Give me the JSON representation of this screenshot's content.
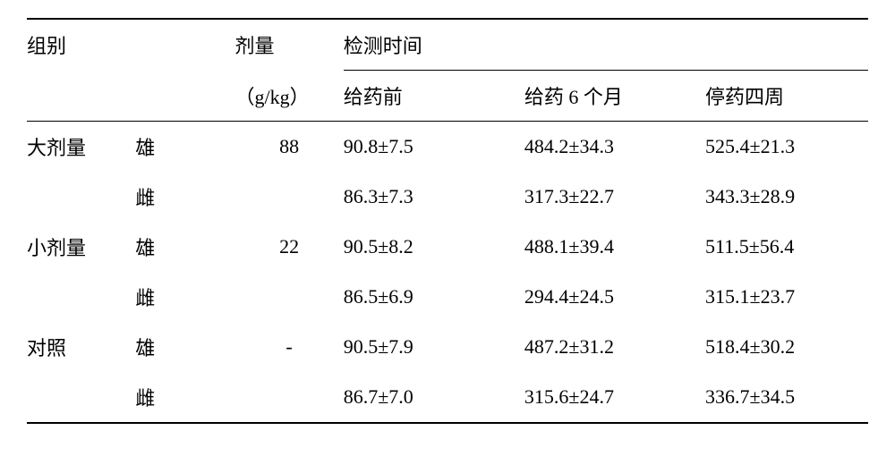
{
  "headers": {
    "group": "组别",
    "dose_label": "剂量",
    "dose_unit": "（g/kg）",
    "timepoint_label": "检测时间",
    "t1": "给药前",
    "t2": "给药 6 个月",
    "t3": "停药四周"
  },
  "sex": {
    "male": "雄",
    "female": "雌"
  },
  "groups": {
    "high": {
      "label": "大剂量",
      "dose": "88",
      "male": {
        "t1": "90.8±7.5",
        "t2": "484.2±34.3",
        "t3": "525.4±21.3"
      },
      "female": {
        "t1": "86.3±7.3",
        "t2": "317.3±22.7",
        "t3": "343.3±28.9"
      }
    },
    "low": {
      "label": "小剂量",
      "dose": "22",
      "male": {
        "t1": "90.5±8.2",
        "t2": "488.1±39.4",
        "t3": "511.5±56.4"
      },
      "female": {
        "t1": "86.5±6.9",
        "t2": "294.4±24.5",
        "t3": "315.1±23.7"
      }
    },
    "control": {
      "label": "对照",
      "dose": "-",
      "male": {
        "t1": "90.5±7.9",
        "t2": "487.2±31.2",
        "t3": "518.4±30.2"
      },
      "female": {
        "t1": "86.7±7.0",
        "t2": "315.6±24.7",
        "t3": "336.7±34.5"
      }
    }
  }
}
